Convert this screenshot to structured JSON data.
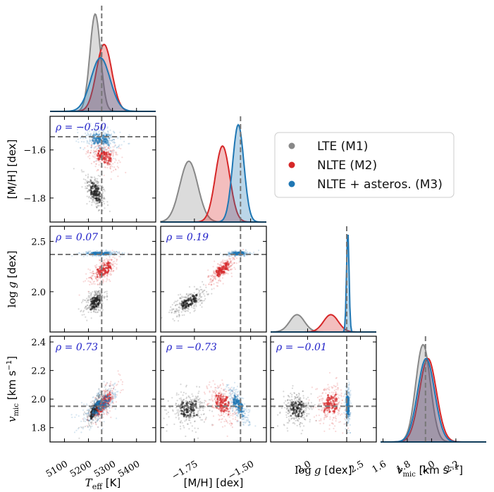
{
  "chart_data": {
    "type": "corner",
    "parameters": [
      {
        "key": "teff",
        "label": "T_eff [K]",
        "xlim": [
          5040,
          5480
        ],
        "ticks": [
          5100,
          5200,
          5300,
          5400
        ],
        "truth": 5255
      },
      {
        "key": "mh",
        "label": "[M/H] [dex]",
        "xlim": [
          -1.9,
          -1.43
        ],
        "ticks": [
          -1.75,
          -1.5
        ],
        "truth": -1.545,
        "ylim": [
          -1.9,
          -1.46
        ],
        "yticks": [
          -1.6,
          -1.8
        ]
      },
      {
        "key": "logg",
        "label": "log g [dex]",
        "xlim": [
          1.65,
          2.65
        ],
        "ticks": [
          2.0,
          2.5
        ],
        "truth": 2.37,
        "ylim": [
          1.6,
          2.65
        ],
        "yticks": [
          2.0,
          2.5
        ]
      },
      {
        "key": "vmic",
        "label": "v_mic [km s^-1]",
        "xlim": [
          1.58,
          2.45
        ],
        "ticks": [
          1.6,
          1.8,
          2.0,
          2.2
        ],
        "truth": 1.95,
        "ylim": [
          1.7,
          2.44
        ],
        "yticks": [
          1.8,
          2.0,
          2.2,
          2.4
        ]
      }
    ],
    "axis_labels": {
      "teff": [
        "T",
        "eff",
        " [K]"
      ],
      "mh": "[M/H] [dex]",
      "logg": [
        "log",
        "g",
        " [dex]"
      ],
      "vmic": [
        "v",
        "mic",
        " [km s",
        "−1",
        "]"
      ]
    },
    "tick_labels": {
      "teff": [
        "5100",
        "5200",
        "5300",
        "5400"
      ],
      "mh_x": [
        "−1.75",
        "−1.50"
      ],
      "mh_y": [
        "−1.6",
        "−1.8"
      ],
      "logg_x": [
        "2.0",
        "2.5"
      ],
      "logg_y": [
        "2.0",
        "2.5"
      ],
      "vmic_x": [
        "1.6",
        "1.8",
        "2.0",
        "2.2"
      ],
      "vmic_y": [
        "1.8",
        "2.0",
        "2.2",
        "2.4"
      ]
    },
    "models": [
      {
        "name": "LTE (M1)",
        "color": "#888888",
        "means": {
          "teff": 5228,
          "mh": -1.775,
          "logg": 1.9,
          "vmic": 1.93
        },
        "sd": {
          "teff": 22,
          "mh": 0.04,
          "logg": 0.07,
          "vmic": 0.06
        }
      },
      {
        "name": "NLTE (M2)",
        "color": "#d62728",
        "means": {
          "teff": 5265,
          "mh": -1.625,
          "logg": 2.22,
          "vmic": 1.97
        },
        "sd": {
          "teff": 32,
          "mh": 0.032,
          "logg": 0.07,
          "vmic": 0.07
        }
      },
      {
        "name": "NLTE + asteros. (M3)",
        "color": "#1f77b4",
        "means": {
          "teff": 5250,
          "mh": -1.555,
          "logg": 2.38,
          "vmic": 1.955
        },
        "sd": {
          "teff": 40,
          "mh": 0.025,
          "logg": 0.012,
          "vmic": 0.07
        }
      }
    ],
    "correlations": [
      {
        "row": 1,
        "col": 0,
        "text": "ρ = −0.50"
      },
      {
        "row": 2,
        "col": 0,
        "text": "ρ = 0.07"
      },
      {
        "row": 2,
        "col": 1,
        "text": "ρ = 0.19"
      },
      {
        "row": 3,
        "col": 0,
        "text": "ρ = 0.73"
      },
      {
        "row": 3,
        "col": 1,
        "text": "ρ = −0.73"
      },
      {
        "row": 3,
        "col": 2,
        "text": "ρ = −0.01"
      }
    ],
    "legend_position": "upper-right"
  }
}
